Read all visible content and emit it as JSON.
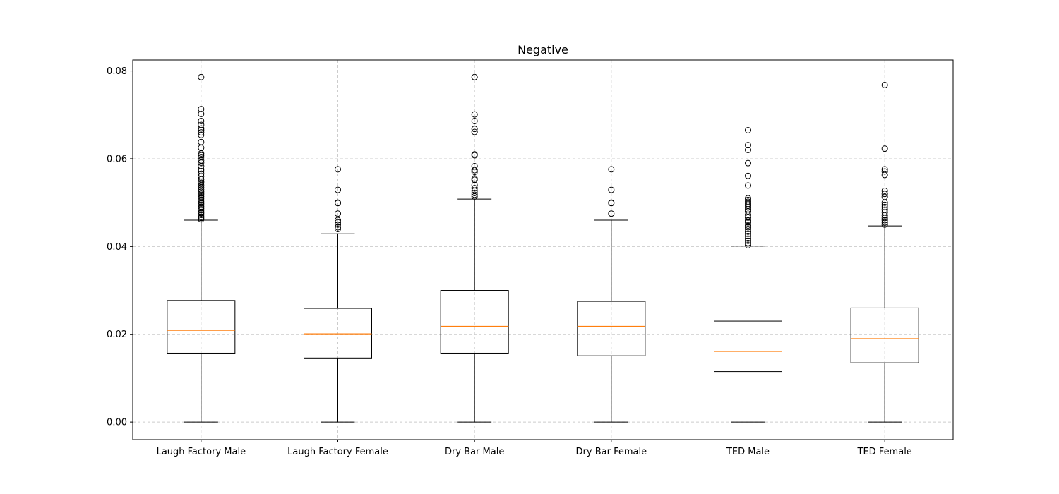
{
  "chart_data": {
    "type": "box",
    "title": "Negative",
    "xlabel": "",
    "ylabel": "",
    "ylim": [
      -0.004,
      0.0825
    ],
    "yticks": [
      0.0,
      0.02,
      0.04,
      0.06,
      0.08
    ],
    "ytick_labels": [
      "0.00",
      "0.02",
      "0.04",
      "0.06",
      "0.08"
    ],
    "grid": true,
    "colors": {
      "box": "#000000",
      "median": "#ff7f0e",
      "grid": "#cccccc",
      "outlier_edge": "#000000"
    },
    "categories": [
      "Laugh Factory Male",
      "Laugh Factory Female",
      "Dry Bar Male",
      "Dry Bar Female",
      "TED Male",
      "TED Female"
    ],
    "boxes": [
      {
        "category": "Laugh Factory Male",
        "whislo": 0.0,
        "q1": 0.0157,
        "med": 0.0209,
        "q3": 0.0277,
        "whishi": 0.046,
        "fliers": [
          0.0786,
          0.0713,
          0.0702,
          0.0686,
          0.0677,
          0.0669,
          0.0665,
          0.066,
          0.0654,
          0.0638,
          0.0625,
          0.0612,
          0.0608,
          0.0604,
          0.0596,
          0.0591,
          0.0583,
          0.0576,
          0.0572,
          0.0566,
          0.056,
          0.0553,
          0.0548,
          0.0545,
          0.054,
          0.0535,
          0.053,
          0.0525,
          0.0521,
          0.0518,
          0.0514,
          0.051,
          0.0506,
          0.0502,
          0.0498,
          0.0495,
          0.0491,
          0.0487,
          0.0483,
          0.0479,
          0.0476,
          0.0472,
          0.0468,
          0.0465,
          0.0462
        ]
      },
      {
        "category": "Laugh Factory Female",
        "whislo": 0.0,
        "q1": 0.0146,
        "med": 0.0201,
        "q3": 0.0259,
        "whishi": 0.0429,
        "fliers": [
          0.0576,
          0.0529,
          0.05,
          0.0499,
          0.0475,
          0.046,
          0.0455,
          0.045,
          0.0444,
          0.044
        ]
      },
      {
        "category": "Dry Bar Male",
        "whislo": 0.0,
        "q1": 0.0157,
        "med": 0.0218,
        "q3": 0.03,
        "whishi": 0.0508,
        "fliers": [
          0.0786,
          0.0701,
          0.0686,
          0.0668,
          0.0661,
          0.061,
          0.0608,
          0.0583,
          0.0574,
          0.057,
          0.0555,
          0.0552,
          0.054,
          0.0533,
          0.0527,
          0.0522,
          0.0518,
          0.0514
        ]
      },
      {
        "category": "Dry Bar Female",
        "whislo": 0.0,
        "q1": 0.0151,
        "med": 0.0218,
        "q3": 0.0275,
        "whishi": 0.046,
        "fliers": [
          0.0576,
          0.0529,
          0.05,
          0.0499,
          0.0475
        ]
      },
      {
        "category": "TED Male",
        "whislo": 0.0,
        "q1": 0.0115,
        "med": 0.0161,
        "q3": 0.023,
        "whishi": 0.0401,
        "fliers": [
          0.0665,
          0.0631,
          0.062,
          0.059,
          0.0561,
          0.0539,
          0.051,
          0.0506,
          0.0502,
          0.0497,
          0.0493,
          0.0489,
          0.0485,
          0.048,
          0.0472,
          0.0466,
          0.0459,
          0.0455,
          0.0448,
          0.0444,
          0.044,
          0.0434,
          0.0429,
          0.0424,
          0.0418,
          0.0413,
          0.0408,
          0.0403
        ]
      },
      {
        "category": "TED Female",
        "whislo": 0.0,
        "q1": 0.0135,
        "med": 0.019,
        "q3": 0.026,
        "whishi": 0.0447,
        "fliers": [
          0.0768,
          0.0623,
          0.0576,
          0.0571,
          0.0563,
          0.0527,
          0.052,
          0.0513,
          0.05,
          0.0495,
          0.049,
          0.0484,
          0.0478,
          0.0471,
          0.0465,
          0.046,
          0.0455,
          0.045
        ]
      }
    ]
  }
}
